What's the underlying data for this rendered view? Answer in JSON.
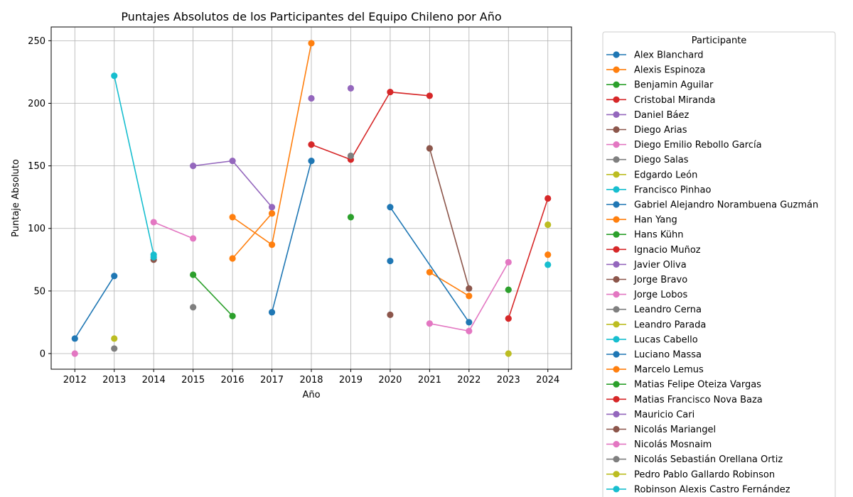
{
  "chart_data": {
    "type": "line",
    "title": "Puntajes Absolutos de los Participantes del Equipo Chileno por Año",
    "xlabel": "Año",
    "ylabel": "Puntaje Absoluto",
    "x_ticks": [
      2012,
      2013,
      2014,
      2015,
      2016,
      2017,
      2018,
      2019,
      2020,
      2021,
      2022,
      2023,
      2024
    ],
    "y_ticks": [
      0,
      50,
      100,
      150,
      200,
      250
    ],
    "xlim": [
      2011.4,
      2024.6
    ],
    "ylim": [
      -12.5,
      261
    ],
    "grid": true,
    "legend_title": "Participante",
    "legend_position": "outside-right",
    "series": [
      {
        "name": "Alex Blanchard",
        "color": "#1f77b4",
        "points": [
          [
            2012,
            12
          ],
          [
            2013,
            62
          ]
        ]
      },
      {
        "name": "Alexis Espinoza",
        "color": "#ff7f0e",
        "points": [
          [
            2016,
            109
          ],
          [
            2017,
            87
          ],
          [
            2018,
            248
          ]
        ]
      },
      {
        "name": "Benjamin Aguilar",
        "color": "#2ca02c",
        "points": [
          [
            2015,
            63
          ],
          [
            2016,
            30
          ]
        ]
      },
      {
        "name": "Cristobal Miranda",
        "color": "#d62728",
        "points": [
          [
            2018,
            167
          ],
          [
            2019,
            155
          ],
          [
            2020,
            209
          ],
          [
            2021,
            206
          ]
        ]
      },
      {
        "name": "Daniel Báez",
        "color": "#9467bd",
        "points": [
          [
            2018,
            204
          ]
        ]
      },
      {
        "name": "Diego Arias",
        "color": "#8c564b",
        "points": [
          [
            2014,
            75
          ]
        ]
      },
      {
        "name": "Diego Emilio Rebollo García",
        "color": "#e377c2",
        "points": [
          [
            2012,
            0
          ]
        ]
      },
      {
        "name": "Diego Salas",
        "color": "#7f7f7f",
        "points": [
          [
            2013,
            4
          ]
        ]
      },
      {
        "name": "Edgardo León",
        "color": "#bcbd22",
        "points": [
          [
            2013,
            12
          ]
        ]
      },
      {
        "name": "Francisco Pinhao",
        "color": "#17becf",
        "points": [
          [
            2013,
            222
          ],
          [
            2014,
            79
          ]
        ]
      },
      {
        "name": "Gabriel Alejandro Norambuena Guzmán",
        "color": "#1f77b4",
        "points": [
          [
            2020,
            74
          ]
        ]
      },
      {
        "name": "Han Yang",
        "color": "#ff7f0e",
        "points": [
          [
            2021,
            65
          ],
          [
            2022,
            46
          ]
        ]
      },
      {
        "name": "Hans Kühn",
        "color": "#2ca02c",
        "points": [
          [
            2019,
            109
          ]
        ]
      },
      {
        "name": "Ignacio Muñoz",
        "color": "#d62728",
        "points": [
          [
            2023,
            28
          ],
          [
            2024,
            124
          ]
        ]
      },
      {
        "name": "Javier Oliva",
        "color": "#9467bd",
        "points": [
          [
            2015,
            150
          ],
          [
            2016,
            154
          ],
          [
            2017,
            117
          ]
        ]
      },
      {
        "name": "Jorge Bravo",
        "color": "#8c564b",
        "points": [
          [
            2021,
            164
          ],
          [
            2022,
            52
          ]
        ]
      },
      {
        "name": "Jorge Lobos",
        "color": "#e377c2",
        "points": [
          [
            2014,
            105
          ],
          [
            2015,
            92
          ]
        ]
      },
      {
        "name": "Leandro Cerna",
        "color": "#7f7f7f",
        "points": [
          [
            2019,
            158
          ]
        ]
      },
      {
        "name": "Leandro Parada",
        "color": "#bcbd22",
        "points": [
          [
            2024,
            103
          ]
        ]
      },
      {
        "name": "Lucas Cabello",
        "color": "#17becf",
        "points": [
          [
            2014,
            77
          ]
        ]
      },
      {
        "name": "Luciano Massa",
        "color": "#1f77b4",
        "points": [
          [
            2017,
            33
          ],
          [
            2018,
            154
          ]
        ]
      },
      {
        "name": "Marcelo Lemus",
        "color": "#ff7f0e",
        "points": [
          [
            2016,
            76
          ],
          [
            2017,
            112
          ]
        ]
      },
      {
        "name": "Matias Felipe Oteiza Vargas",
        "color": "#2ca02c",
        "points": [
          [
            2023,
            51
          ]
        ]
      },
      {
        "name": "Matias Francisco Nova Baza",
        "color": "#d62728",
        "points": []
      },
      {
        "name": "Mauricio Cari",
        "color": "#9467bd",
        "points": [
          [
            2019,
            212
          ]
        ]
      },
      {
        "name": "Nicolás Mariangel",
        "color": "#8c564b",
        "points": [
          [
            2020,
            31
          ]
        ]
      },
      {
        "name": "Nicolás Mosnaim",
        "color": "#e377c2",
        "points": [
          [
            2021,
            24
          ],
          [
            2022,
            18
          ],
          [
            2023,
            73
          ]
        ]
      },
      {
        "name": "Nicolás Sebastián Orellana Ortiz",
        "color": "#7f7f7f",
        "points": [
          [
            2015,
            37
          ]
        ]
      },
      {
        "name": "Pedro Pablo Gallardo Robinson",
        "color": "#bcbd22",
        "points": [
          [
            2023,
            0
          ]
        ]
      },
      {
        "name": "Robinson Alexis Castro Fernández",
        "color": "#17becf",
        "points": [
          [
            2024,
            71
          ]
        ]
      },
      {
        "name": "",
        "color": "#1f77b4",
        "points": [
          [
            2020,
            117
          ],
          [
            2022,
            25
          ]
        ]
      },
      {
        "name": "",
        "color": "#ff7f0e",
        "points": [
          [
            2024,
            79
          ]
        ]
      }
    ]
  }
}
